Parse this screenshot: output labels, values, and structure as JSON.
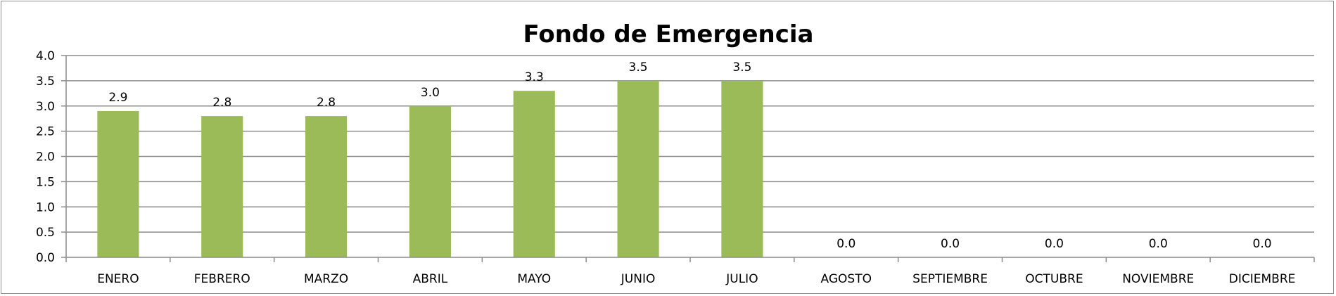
{
  "chart_data": {
    "type": "bar",
    "title": "Fondo de Emergencia",
    "xlabel": "",
    "ylabel": "",
    "categories": [
      "ENERO",
      "FEBRERO",
      "MARZO",
      "ABRIL",
      "MAYO",
      "JUNIO",
      "JULIO",
      "AGOSTO",
      "SEPTIEMBRE",
      "OCTUBRE",
      "NOVIEMBRE",
      "DICIEMBRE"
    ],
    "values": [
      2.9,
      2.8,
      2.8,
      3.0,
      3.3,
      3.5,
      3.5,
      0.0,
      0.0,
      0.0,
      0.0,
      0.0
    ],
    "value_labels": [
      "2.9",
      "2.8",
      "2.8",
      "3.0",
      "3.3",
      "3.5",
      "3.5",
      "0.0",
      "0.0",
      "0.0",
      "0.0",
      "0.0"
    ],
    "ylim": [
      0,
      4.0
    ],
    "yticks": [
      "0.0",
      "0.5",
      "1.0",
      "1.5",
      "2.0",
      "2.5",
      "3.0",
      "3.5",
      "4.0"
    ],
    "grid": true,
    "legend": "none",
    "colors": {
      "bar": "#9bbb59",
      "grid": "#8c8c8c",
      "axis": "#8c8c8c"
    }
  }
}
